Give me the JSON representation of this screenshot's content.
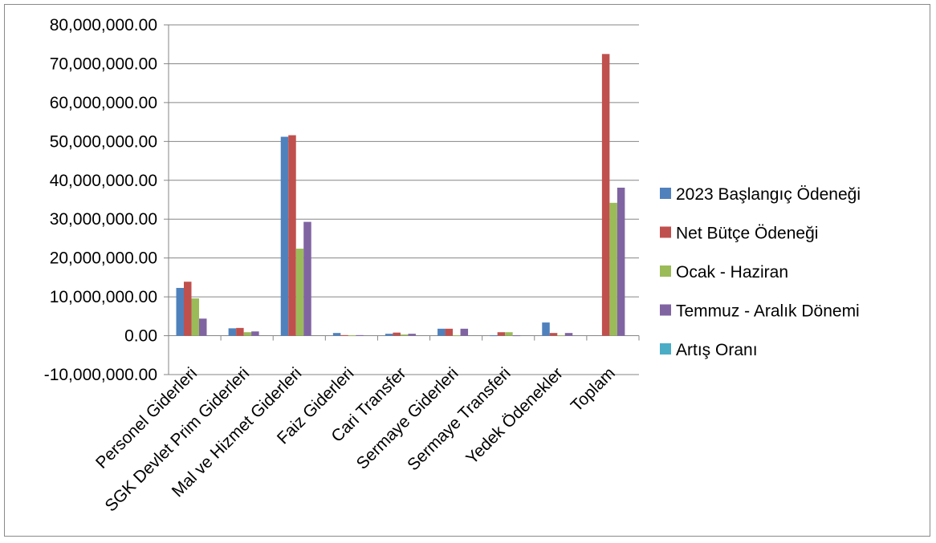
{
  "chart_data": {
    "type": "bar",
    "title": "",
    "xlabel": "",
    "ylabel": "",
    "ylim": [
      -10000000,
      80000000
    ],
    "yticks": [
      -10000000,
      0,
      10000000,
      20000000,
      30000000,
      40000000,
      50000000,
      60000000,
      70000000,
      80000000
    ],
    "ytick_labels": [
      "-10,000,000.00",
      "0.00",
      "10,000,000.00",
      "20,000,000.00",
      "30,000,000.00",
      "40,000,000.00",
      "50,000,000.00",
      "60,000,000.00",
      "70,000,000.00",
      "80,000,000.00"
    ],
    "grid": true,
    "legend_position": "right",
    "categories": [
      "Personel Giderleri",
      "SGK Devlet Prim Giderleri",
      "Mal ve Hizmet Giderleri",
      "Faiz Giderleri",
      "Cari Transfer",
      "Sermaye Giderleri",
      "Sermaye Transferi",
      "Yedek Ödenekler",
      "Toplam"
    ],
    "series": [
      {
        "name": "2023 Başlangıç Ödeneği",
        "color": "#4f81bd",
        "values": [
          12300000,
          1900000,
          51200000,
          700000,
          500000,
          1800000,
          100000,
          3400000,
          0
        ]
      },
      {
        "name": "Net Bütçe Ödeneği",
        "color": "#c0504d",
        "values": [
          13900000,
          2000000,
          51600000,
          150000,
          800000,
          1800000,
          900000,
          700000,
          72500000
        ]
      },
      {
        "name": "Ocak - Haziran",
        "color": "#9bbb59",
        "values": [
          9600000,
          900000,
          22400000,
          100000,
          300000,
          100000,
          900000,
          100000,
          34200000
        ]
      },
      {
        "name": "Temmuz - Aralık Dönemi",
        "color": "#8064a2",
        "values": [
          4400000,
          1100000,
          29300000,
          150000,
          500000,
          1800000,
          100000,
          700000,
          38100000
        ]
      },
      {
        "name": "Artış Oranı",
        "color": "#4bacc6",
        "values": [
          0,
          0,
          0,
          0,
          0,
          0,
          0,
          0,
          0
        ]
      }
    ]
  }
}
